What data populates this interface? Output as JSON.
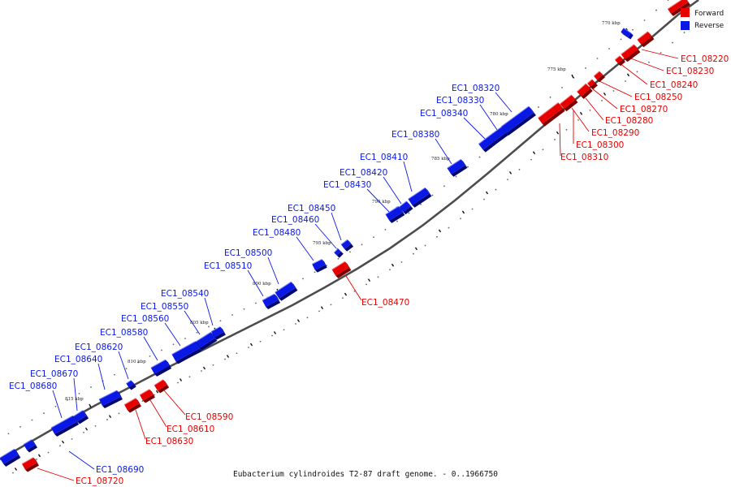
{
  "legend": {
    "forward_label": "Forward",
    "reverse_label": "Reverse"
  },
  "caption": "Eubacterium cylindroides T2-87 draft genome. - 0..1966750",
  "colors": {
    "forward": "#e80000",
    "reverse": "#0a18e6",
    "backbone": "#555555"
  },
  "ticks": [
    {
      "label": "770 kbp"
    },
    {
      "label": "775 kbp"
    },
    {
      "label": "780 kbp"
    },
    {
      "label": "785 kbp"
    },
    {
      "label": "790 kbp"
    },
    {
      "label": "795 kbp"
    },
    {
      "label": "800 kbp"
    },
    {
      "label": "805 kbp"
    },
    {
      "label": "810 kbp"
    },
    {
      "label": "815 kbp"
    }
  ],
  "genes": [
    {
      "id": "g08200",
      "name": "",
      "strand": "forward"
    },
    {
      "id": "g08210",
      "name": "",
      "strand": "reverse"
    },
    {
      "id": "g08220",
      "name": "EC1_08220",
      "strand": "forward"
    },
    {
      "id": "g08230",
      "name": "EC1_08230",
      "strand": "forward"
    },
    {
      "id": "g08240",
      "name": "EC1_08240",
      "strand": "forward"
    },
    {
      "id": "g08250",
      "name": "EC1_08250",
      "strand": "forward"
    },
    {
      "id": "g08270",
      "name": "EC1_08270",
      "strand": "forward"
    },
    {
      "id": "g08280",
      "name": "EC1_08280",
      "strand": "forward"
    },
    {
      "id": "g08290",
      "name": "EC1_08290",
      "strand": "forward"
    },
    {
      "id": "g08300",
      "name": "EC1_08300",
      "strand": "forward"
    },
    {
      "id": "g08310",
      "name": "EC1_08310",
      "strand": "forward"
    },
    {
      "id": "g08320",
      "name": "EC1_08320",
      "strand": "reverse"
    },
    {
      "id": "g08330",
      "name": "EC1_08330",
      "strand": "reverse"
    },
    {
      "id": "g08340",
      "name": "EC1_08340",
      "strand": "reverse"
    },
    {
      "id": "g08380",
      "name": "EC1_08380",
      "strand": "reverse"
    },
    {
      "id": "g08410",
      "name": "EC1_08410",
      "strand": "reverse"
    },
    {
      "id": "g08420",
      "name": "EC1_08420",
      "strand": "reverse"
    },
    {
      "id": "g08430",
      "name": "EC1_08430",
      "strand": "reverse"
    },
    {
      "id": "g08450",
      "name": "EC1_08450",
      "strand": "reverse"
    },
    {
      "id": "g08460",
      "name": "EC1_08460",
      "strand": "reverse"
    },
    {
      "id": "g08470",
      "name": "EC1_08470",
      "strand": "forward"
    },
    {
      "id": "g08480",
      "name": "EC1_08480",
      "strand": "reverse"
    },
    {
      "id": "g08500",
      "name": "EC1_08500",
      "strand": "reverse"
    },
    {
      "id": "g08510",
      "name": "EC1_08510",
      "strand": "reverse"
    },
    {
      "id": "g08540",
      "name": "EC1_08540",
      "strand": "reverse"
    },
    {
      "id": "g08550",
      "name": "EC1_08550",
      "strand": "reverse"
    },
    {
      "id": "g08560",
      "name": "EC1_08560",
      "strand": "reverse"
    },
    {
      "id": "g08580",
      "name": "EC1_08580",
      "strand": "reverse"
    },
    {
      "id": "g08590",
      "name": "EC1_08590",
      "strand": "forward"
    },
    {
      "id": "g08610",
      "name": "EC1_08610",
      "strand": "forward"
    },
    {
      "id": "g08620",
      "name": "EC1_08620",
      "strand": "reverse"
    },
    {
      "id": "g08630",
      "name": "EC1_08630",
      "strand": "forward"
    },
    {
      "id": "g08640",
      "name": "EC1_08640",
      "strand": "reverse"
    },
    {
      "id": "g08670",
      "name": "EC1_08670",
      "strand": "reverse"
    },
    {
      "id": "g08680",
      "name": "EC1_08680",
      "strand": "reverse"
    },
    {
      "id": "g08690",
      "name": "EC1_08690",
      "strand": "reverse"
    },
    {
      "id": "g08700",
      "name": "",
      "strand": "reverse"
    },
    {
      "id": "g08720",
      "name": "EC1_08720",
      "strand": "forward"
    }
  ]
}
